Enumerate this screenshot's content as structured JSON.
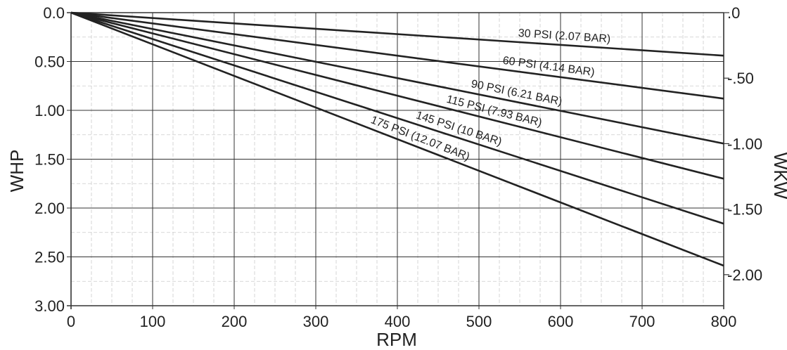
{
  "chart_data": {
    "type": "line",
    "title": "",
    "xlabel": "RPM",
    "ylabel": "WHP",
    "y2label": "WKW",
    "xlim": [
      0,
      800
    ],
    "ylim": [
      0,
      3.0
    ],
    "y_inverted": true,
    "y2lim": [
      0,
      2.237
    ],
    "x_ticks": [
      0,
      100,
      200,
      300,
      400,
      500,
      600,
      700,
      800
    ],
    "x_tick_labels": [
      "0",
      "100",
      "200",
      "300",
      "400",
      "500",
      "600",
      "700",
      "800"
    ],
    "y_ticks": [
      0,
      0.5,
      1.0,
      1.5,
      2.0,
      2.5,
      3.0
    ],
    "y_tick_labels": [
      "0.0",
      "0.50",
      "1.00",
      "1.50",
      "2.00",
      "2.50",
      "3.00"
    ],
    "y2_ticks": [
      0,
      0.5,
      1.0,
      1.5,
      2.0
    ],
    "y2_tick_labels": [
      ".0",
      "-.50",
      "-1.00",
      "-1.50",
      "-2.00"
    ],
    "grid": true,
    "minor_grid": true,
    "series": [
      {
        "name": "30 PSI (2.07 BAR)",
        "x": [
          0,
          800
        ],
        "y": [
          0,
          0.44
        ]
      },
      {
        "name": "60 PSI (4.14 BAR)",
        "x": [
          0,
          800
        ],
        "y": [
          0,
          0.88
        ]
      },
      {
        "name": "90 PSI (6.21 BAR)",
        "x": [
          0,
          800
        ],
        "y": [
          0,
          1.34
        ]
      },
      {
        "name": "115 PSI (7.93 BAR)",
        "x": [
          0,
          800
        ],
        "y": [
          0,
          1.7
        ]
      },
      {
        "name": "145 PSI (10 BAR)",
        "x": [
          0,
          800
        ],
        "y": [
          0,
          2.16
        ]
      },
      {
        "name": "175 PSI (12.07 BAR)",
        "x": [
          0,
          800
        ],
        "y": [
          0,
          2.59
        ]
      }
    ],
    "line_color": "#222222",
    "grid_color": "#333333",
    "minor_grid_color": "#cccccc"
  }
}
